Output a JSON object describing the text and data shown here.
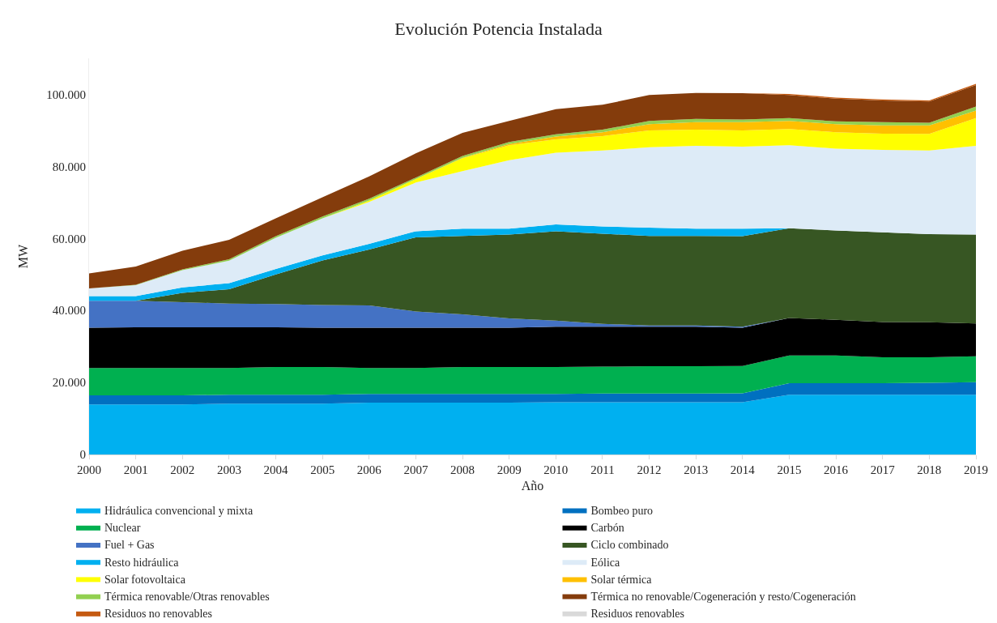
{
  "chart_data": {
    "type": "area",
    "stacked": true,
    "title": "Evolución Potencia Instalada",
    "xlabel": "Año",
    "ylabel": "MW",
    "x": [
      2000,
      2001,
      2002,
      2003,
      2004,
      2005,
      2006,
      2007,
      2008,
      2009,
      2010,
      2011,
      2012,
      2013,
      2014,
      2015,
      2016,
      2017,
      2018,
      2019
    ],
    "xlim": [
      2000,
      2019
    ],
    "xticks": [
      2000,
      2001,
      2002,
      2003,
      2004,
      2005,
      2006,
      2007,
      2008,
      2009,
      2010,
      2011,
      2012,
      2013,
      2014,
      2015,
      2016,
      2017,
      2018,
      2019
    ],
    "ylim": [
      0,
      110000
    ],
    "yticks": [
      0,
      {
        "value": 20000,
        "label": "20.000"
      },
      {
        "value": 40000,
        "label": "40.000"
      },
      {
        "value": 60000,
        "label": "60.000"
      },
      {
        "value": 80000,
        "label": "80.000"
      },
      {
        "value": 100000,
        "label": "100.000"
      }
    ],
    "grid": false,
    "legend": "bottom",
    "series": [
      {
        "name": "Hidráulica convencional y mixta",
        "color": "#00b0f0",
        "values": [
          13900,
          13900,
          13900,
          14100,
          14100,
          14100,
          14400,
          14400,
          14400,
          14400,
          14500,
          14500,
          14500,
          14500,
          14500,
          16600,
          16600,
          16600,
          16600,
          16600
        ]
      },
      {
        "name": "Bombeo puro",
        "color": "#0070c0",
        "values": [
          2500,
          2500,
          2500,
          2500,
          2500,
          2500,
          2400,
          2400,
          2400,
          2400,
          2300,
          2400,
          2400,
          2400,
          2500,
          3200,
          3200,
          3200,
          3300,
          3500
        ]
      },
      {
        "name": "Nuclear",
        "color": "#00b050",
        "values": [
          7600,
          7600,
          7600,
          7400,
          7700,
          7700,
          7200,
          7200,
          7500,
          7500,
          7500,
          7500,
          7600,
          7600,
          7600,
          7700,
          7700,
          7200,
          7100,
          7200
        ]
      },
      {
        "name": "Carbón",
        "color": "#000000",
        "values": [
          11200,
          11300,
          11300,
          11300,
          11000,
          10900,
          11200,
          11200,
          10900,
          10900,
          11200,
          11100,
          11000,
          11000,
          10600,
          10400,
          9900,
          9800,
          9700,
          9100
        ]
      },
      {
        "name": "Fuel + Gas",
        "color": "#4472c4",
        "values": [
          7500,
          7400,
          7000,
          6600,
          6500,
          6300,
          6200,
          4500,
          3700,
          2600,
          1700,
          800,
          300,
          300,
          300,
          0,
          0,
          0,
          0,
          0
        ]
      },
      {
        "name": "Ciclo combinado",
        "color": "#375623",
        "values": [
          0,
          0,
          2600,
          4000,
          8200,
          12400,
          15500,
          20600,
          21800,
          23300,
          24800,
          25000,
          24900,
          24900,
          25100,
          24900,
          24800,
          24900,
          24500,
          24700
        ]
      },
      {
        "name": "Resto hidráulica",
        "color": "#00b0f0",
        "values": [
          1300,
          1300,
          1500,
          1700,
          1500,
          1400,
          1600,
          1700,
          2000,
          1600,
          1900,
          2000,
          2300,
          2000,
          2100,
          0,
          0,
          0,
          0,
          0
        ]
      },
      {
        "name": "Eólica",
        "color": "#ddebf7",
        "values": [
          2100,
          3000,
          4800,
          6200,
          8700,
          10300,
          11600,
          13500,
          16000,
          19000,
          19900,
          21100,
          22300,
          23000,
          22800,
          23100,
          22700,
          22900,
          23200,
          24600
        ]
      },
      {
        "name": "Solar fotovoltaica",
        "color": "#ffff00",
        "values": [
          0,
          0,
          0,
          0,
          0,
          0,
          400,
          1000,
          3600,
          4200,
          3700,
          4000,
          4700,
          4500,
          4500,
          4500,
          4600,
          4500,
          4600,
          7700
        ]
      },
      {
        "name": "Solar térmica",
        "color": "#ffc000",
        "values": [
          0,
          0,
          0,
          0,
          0,
          0,
          0,
          0,
          100,
          300,
          800,
          1100,
          1700,
          2100,
          2300,
          2200,
          2200,
          2300,
          2400,
          2100
        ]
      },
      {
        "name": "Térmica renovable/Otras renovables",
        "color": "#92d050",
        "values": [
          0,
          100,
          200,
          400,
          400,
          500,
          500,
          400,
          500,
          600,
          600,
          700,
          900,
          900,
          700,
          800,
          800,
          900,
          700,
          1100
        ]
      },
      {
        "name": "Térmica no renovable/Cogeneración y resto/Cogeneración",
        "color": "#843c0c",
        "values": [
          4200,
          5100,
          5200,
          5400,
          5000,
          5300,
          6200,
          6700,
          6400,
          5800,
          7000,
          6900,
          7200,
          7200,
          7300,
          6400,
          6300,
          6000,
          5900,
          6000
        ]
      },
      {
        "name": "Residuos no renovables",
        "color": "#c55a11",
        "values": [
          0,
          0,
          0,
          0,
          0,
          0,
          0,
          0,
          0,
          0,
          0,
          0,
          0,
          0,
          0,
          300,
          300,
          300,
          300,
          300
        ]
      },
      {
        "name": "Residuos renovables",
        "color": "#d9d9d9",
        "values": [
          null,
          null,
          null,
          null,
          null,
          null,
          null,
          null,
          null,
          null,
          null,
          null,
          null,
          null,
          null,
          null,
          null,
          null,
          null,
          null
        ]
      }
    ]
  }
}
